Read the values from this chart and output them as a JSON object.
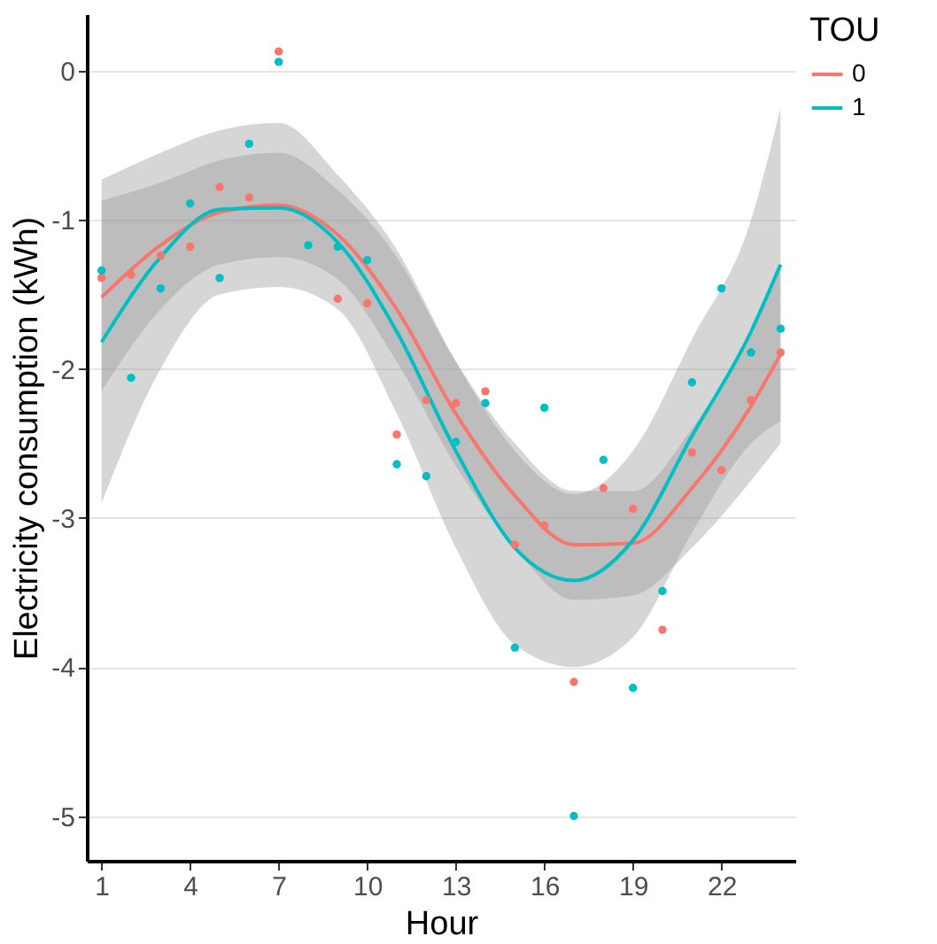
{
  "chart_data": {
    "type": "scatter",
    "xlabel": "Hour",
    "ylabel": "Electricity consumption (kWh)",
    "legend_title": "TOU",
    "xlim": [
      0.5,
      24.5
    ],
    "xticks": [
      1,
      4,
      7,
      10,
      13,
      16,
      19,
      22
    ],
    "ylim": [
      -5.3,
      0.38
    ],
    "yticks": [
      -5,
      -4,
      -3,
      -2,
      -1,
      0
    ],
    "grid": "y",
    "legend": "right",
    "series": [
      {
        "name": "0",
        "type": "line",
        "color": "#f8766d",
        "x": [
          1,
          3,
          5,
          7,
          9,
          11,
          13,
          15,
          17,
          19,
          21,
          23,
          24
        ],
        "values": [
          -1.52,
          -1.17,
          -0.95,
          -0.9,
          -1.1,
          -1.6,
          -2.3,
          -2.85,
          -3.18,
          -3.17,
          -2.8,
          -2.25,
          -1.9
        ],
        "lower": [
          -2.15,
          -1.6,
          -1.3,
          -1.25,
          -1.4,
          -1.95,
          -2.65,
          -3.2,
          -3.55,
          -3.52,
          -3.2,
          -2.75,
          -2.5
        ],
        "upper": [
          -0.87,
          -0.75,
          -0.6,
          -0.55,
          -0.8,
          -1.25,
          -1.95,
          -2.5,
          -2.82,
          -2.82,
          -2.4,
          -1.75,
          -1.3
        ]
      },
      {
        "name": "1",
        "type": "line",
        "color": "#00bfc4",
        "x": [
          1,
          3,
          5,
          7,
          9,
          11,
          13,
          15,
          17,
          19,
          21,
          23,
          24
        ],
        "values": [
          -1.82,
          -1.25,
          -0.93,
          -0.92,
          -1.15,
          -1.75,
          -2.55,
          -3.2,
          -3.42,
          -3.15,
          -2.45,
          -1.75,
          -1.3
        ],
        "lower": [
          -2.9,
          -2.0,
          -1.5,
          -1.45,
          -1.6,
          -2.3,
          -3.2,
          -3.85,
          -4.0,
          -3.8,
          -3.1,
          -2.5,
          -2.35
        ],
        "upper": [
          -0.73,
          -0.55,
          -0.4,
          -0.35,
          -0.7,
          -1.2,
          -1.95,
          -2.55,
          -2.84,
          -2.55,
          -1.8,
          -1.0,
          -0.25
        ]
      },
      {
        "color": "#f8766d",
        "x": [
          1,
          2,
          3,
          4,
          5,
          6,
          7,
          8,
          9,
          10,
          11,
          12,
          13,
          14,
          15,
          16,
          17,
          18,
          19,
          20,
          21,
          22,
          23,
          24
        ],
        "values": [
          -1.39,
          -1.37,
          -1.24,
          -1.18,
          -0.78,
          -0.85,
          0.13,
          null,
          -1.53,
          -1.56,
          -2.44,
          -2.21,
          -2.23,
          -2.15,
          -3.18,
          -3.05,
          -4.1,
          -2.8,
          -2.94,
          -3.75,
          -2.56,
          -2.68,
          -2.21,
          -1.89
        ]
      },
      {
        "color": "#00bfc4",
        "x": [
          1,
          2,
          3,
          4,
          5,
          6,
          7,
          8,
          9,
          10,
          11,
          12,
          13,
          14,
          15,
          16,
          17,
          18,
          19,
          20,
          21,
          22,
          23,
          24
        ],
        "values": [
          -1.34,
          -2.06,
          -1.46,
          -0.89,
          -1.39,
          -0.49,
          0.06,
          -1.17,
          -1.18,
          -1.27,
          -2.64,
          -2.72,
          -2.49,
          -2.23,
          -3.87,
          -2.26,
          -5.0,
          -2.61,
          -4.14,
          -3.49,
          -2.09,
          -1.46,
          -1.89,
          -1.73
        ]
      }
    ]
  }
}
